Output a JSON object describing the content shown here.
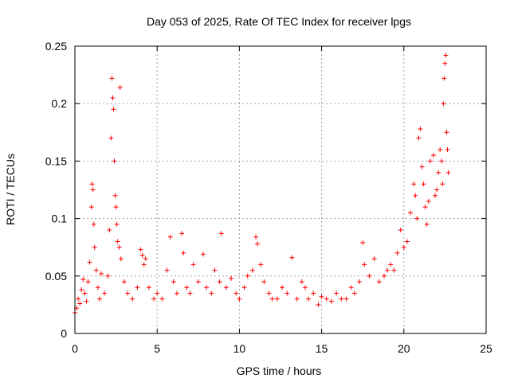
{
  "chart_data": {
    "type": "scatter",
    "title": "Day 053 of 2025, Rate Of TEC Index for receiver lpgs",
    "xlabel": "GPS time / hours",
    "ylabel": "ROTI / TECUs",
    "xlim": [
      0,
      25
    ],
    "ylim": [
      0,
      0.25
    ],
    "x_ticks": [
      0,
      5,
      10,
      15,
      20,
      25
    ],
    "x_tick_labels": [
      "0",
      "5",
      "10",
      "15",
      "20",
      "25"
    ],
    "y_ticks": [
      0,
      0.05,
      0.1,
      0.15,
      0.2,
      0.25
    ],
    "y_tick_labels": [
      "0",
      "0.05",
      "0.1",
      "0.15",
      "0.2",
      "0.25"
    ],
    "grid": true,
    "marker": "plus",
    "color": "#ff0000",
    "series": [
      {
        "points": [
          [
            0.0,
            0.018
          ],
          [
            0.1,
            0.022
          ],
          [
            0.2,
            0.03
          ],
          [
            0.3,
            0.026
          ],
          [
            0.4,
            0.038
          ],
          [
            0.5,
            0.047
          ],
          [
            0.6,
            0.035
          ],
          [
            0.7,
            0.028
          ],
          [
            0.8,
            0.045
          ],
          [
            0.9,
            0.062
          ],
          [
            1.0,
            0.11
          ],
          [
            1.05,
            0.13
          ],
          [
            1.1,
            0.125
          ],
          [
            1.15,
            0.095
          ],
          [
            1.2,
            0.075
          ],
          [
            1.3,
            0.055
          ],
          [
            1.4,
            0.04
          ],
          [
            1.5,
            0.03
          ],
          [
            1.6,
            0.052
          ],
          [
            1.8,
            0.035
          ],
          [
            2.0,
            0.05
          ],
          [
            2.1,
            0.09
          ],
          [
            2.2,
            0.17
          ],
          [
            2.25,
            0.222
          ],
          [
            2.3,
            0.205
          ],
          [
            2.35,
            0.195
          ],
          [
            2.4,
            0.15
          ],
          [
            2.45,
            0.12
          ],
          [
            2.5,
            0.11
          ],
          [
            2.55,
            0.095
          ],
          [
            2.6,
            0.08
          ],
          [
            2.7,
            0.075
          ],
          [
            2.75,
            0.214
          ],
          [
            2.8,
            0.065
          ],
          [
            3.0,
            0.045
          ],
          [
            3.2,
            0.035
          ],
          [
            3.5,
            0.03
          ],
          [
            3.8,
            0.04
          ],
          [
            4.0,
            0.073
          ],
          [
            4.1,
            0.068
          ],
          [
            4.2,
            0.06
          ],
          [
            4.3,
            0.065
          ],
          [
            4.5,
            0.04
          ],
          [
            4.8,
            0.03
          ],
          [
            5.0,
            0.035
          ],
          [
            5.3,
            0.03
          ],
          [
            5.6,
            0.055
          ],
          [
            5.8,
            0.084
          ],
          [
            6.0,
            0.045
          ],
          [
            6.2,
            0.035
          ],
          [
            6.5,
            0.087
          ],
          [
            6.6,
            0.07
          ],
          [
            6.8,
            0.04
          ],
          [
            7.0,
            0.035
          ],
          [
            7.2,
            0.06
          ],
          [
            7.5,
            0.045
          ],
          [
            7.8,
            0.069
          ],
          [
            8.0,
            0.04
          ],
          [
            8.3,
            0.035
          ],
          [
            8.5,
            0.055
          ],
          [
            8.8,
            0.045
          ],
          [
            8.9,
            0.087
          ],
          [
            9.2,
            0.04
          ],
          [
            9.5,
            0.048
          ],
          [
            9.8,
            0.035
          ],
          [
            10.0,
            0.03
          ],
          [
            10.3,
            0.04
          ],
          [
            10.5,
            0.05
          ],
          [
            10.8,
            0.055
          ],
          [
            11.0,
            0.084
          ],
          [
            11.1,
            0.078
          ],
          [
            11.3,
            0.06
          ],
          [
            11.5,
            0.045
          ],
          [
            11.8,
            0.035
          ],
          [
            12.0,
            0.03
          ],
          [
            12.3,
            0.03
          ],
          [
            12.6,
            0.04
          ],
          [
            12.9,
            0.035
          ],
          [
            13.2,
            0.066
          ],
          [
            13.5,
            0.03
          ],
          [
            13.8,
            0.045
          ],
          [
            14.0,
            0.04
          ],
          [
            14.2,
            0.03
          ],
          [
            14.5,
            0.035
          ],
          [
            14.8,
            0.025
          ],
          [
            15.0,
            0.032
          ],
          [
            15.3,
            0.03
          ],
          [
            15.6,
            0.028
          ],
          [
            15.9,
            0.035
          ],
          [
            16.2,
            0.03
          ],
          [
            16.5,
            0.03
          ],
          [
            16.8,
            0.04
          ],
          [
            17.0,
            0.035
          ],
          [
            17.3,
            0.045
          ],
          [
            17.5,
            0.079
          ],
          [
            17.6,
            0.06
          ],
          [
            17.9,
            0.05
          ],
          [
            18.2,
            0.065
          ],
          [
            18.5,
            0.045
          ],
          [
            18.8,
            0.05
          ],
          [
            19.0,
            0.055
          ],
          [
            19.2,
            0.06
          ],
          [
            19.4,
            0.055
          ],
          [
            19.6,
            0.07
          ],
          [
            19.8,
            0.09
          ],
          [
            20.0,
            0.075
          ],
          [
            20.2,
            0.08
          ],
          [
            20.4,
            0.105
          ],
          [
            20.6,
            0.13
          ],
          [
            20.7,
            0.12
          ],
          [
            20.8,
            0.1
          ],
          [
            20.9,
            0.17
          ],
          [
            21.0,
            0.178
          ],
          [
            21.1,
            0.145
          ],
          [
            21.2,
            0.13
          ],
          [
            21.3,
            0.11
          ],
          [
            21.4,
            0.095
          ],
          [
            21.5,
            0.115
          ],
          [
            21.6,
            0.15
          ],
          [
            21.8,
            0.155
          ],
          [
            21.9,
            0.12
          ],
          [
            22.0,
            0.125
          ],
          [
            22.1,
            0.14
          ],
          [
            22.2,
            0.16
          ],
          [
            22.3,
            0.15
          ],
          [
            22.35,
            0.13
          ],
          [
            22.4,
            0.2
          ],
          [
            22.45,
            0.222
          ],
          [
            22.5,
            0.235
          ],
          [
            22.55,
            0.242
          ],
          [
            22.6,
            0.175
          ],
          [
            22.65,
            0.16
          ],
          [
            22.7,
            0.14
          ]
        ]
      }
    ]
  }
}
